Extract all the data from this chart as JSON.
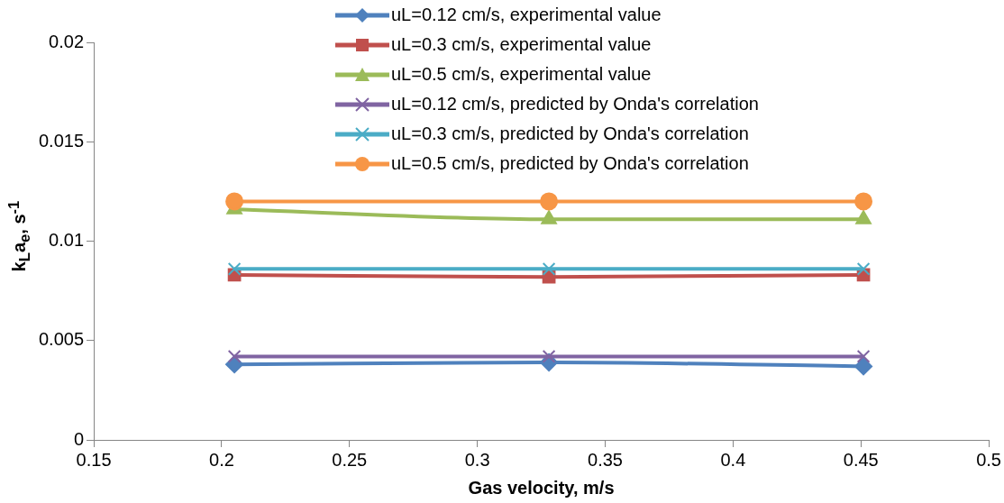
{
  "chart_data": {
    "type": "line",
    "xlabel": "Gas velocity, m/s",
    "ylabel": "k$_{L}$a$_{e}$, s$^{-1}$",
    "xlim": [
      0.15,
      0.5
    ],
    "xticks": [
      0.15,
      0.2,
      0.25,
      0.3,
      0.35,
      0.4,
      0.45,
      0.5
    ],
    "ylim": [
      0,
      0.02
    ],
    "yticks": [
      0,
      0.005,
      0.01,
      0.015,
      0.02
    ],
    "x": [
      0.205,
      0.328,
      0.451
    ],
    "grid": false,
    "legend": "top",
    "series": [
      {
        "name": "uL=0.12 cm/s, experimental value",
        "color": "#4f81bd",
        "marker": "diamond",
        "values": [
          0.0038,
          0.0039,
          0.0037
        ]
      },
      {
        "name": "uL=0.3 cm/s, experimental value",
        "color": "#c0504d",
        "marker": "square",
        "values": [
          0.0083,
          0.0082,
          0.0083
        ]
      },
      {
        "name": "uL=0.5 cm/s, experimental value",
        "color": "#9bbb59",
        "marker": "triangle",
        "values": [
          0.0116,
          0.0111,
          0.0111
        ]
      },
      {
        "name": "uL=0.12 cm/s, predicted by Onda's correlation",
        "color": "#8064a2",
        "marker": "cross",
        "values": [
          0.0042,
          0.0042,
          0.0042
        ]
      },
      {
        "name": "uL=0.3 cm/s, predicted by Onda's correlation",
        "color": "#4bacc6",
        "marker": "cross",
        "values": [
          0.0086,
          0.0086,
          0.0086
        ]
      },
      {
        "name": "uL=0.5 cm/s, predicted by Onda's correlation",
        "color": "#f79646",
        "marker": "circle",
        "values": [
          0.012,
          0.012,
          0.012
        ]
      }
    ]
  }
}
